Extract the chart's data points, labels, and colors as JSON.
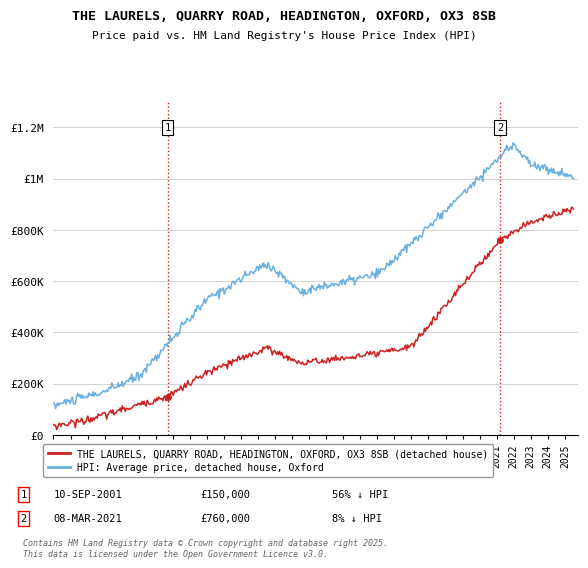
{
  "title": "THE LAURELS, QUARRY ROAD, HEADINGTON, OXFORD, OX3 8SB",
  "subtitle": "Price paid vs. HM Land Registry's House Price Index (HPI)",
  "ylim": [
    0,
    1300000
  ],
  "xlim_start": 1995.0,
  "xlim_end": 2025.8,
  "yticks": [
    0,
    200000,
    400000,
    600000,
    800000,
    1000000,
    1200000
  ],
  "ytick_labels": [
    "£0",
    "£200K",
    "£400K",
    "£600K",
    "£800K",
    "£1M",
    "£1.2M"
  ],
  "transaction1_date": 2001.69,
  "transaction1_price": 150000,
  "transaction1_label": "1",
  "transaction2_date": 2021.19,
  "transaction2_price": 760000,
  "transaction2_label": "2",
  "hpi_color": "#6ab0de",
  "price_color": "#cc2222",
  "vline_color": "#cc2222",
  "background_color": "#ffffff",
  "grid_color": "#cccccc",
  "legend_label_red": "THE LAURELS, QUARRY ROAD, HEADINGTON, OXFORD, OX3 8SB (detached house)",
  "legend_label_blue": "HPI: Average price, detached house, Oxford",
  "footnote": "Contains HM Land Registry data © Crown copyright and database right 2025.\nThis data is licensed under the Open Government Licence v3.0.",
  "annotation1_date": "10-SEP-2001",
  "annotation1_price": "£150,000",
  "annotation1_hpi": "56% ↓ HPI",
  "annotation2_date": "08-MAR-2021",
  "annotation2_price": "£760,000",
  "annotation2_hpi": "8% ↓ HPI"
}
